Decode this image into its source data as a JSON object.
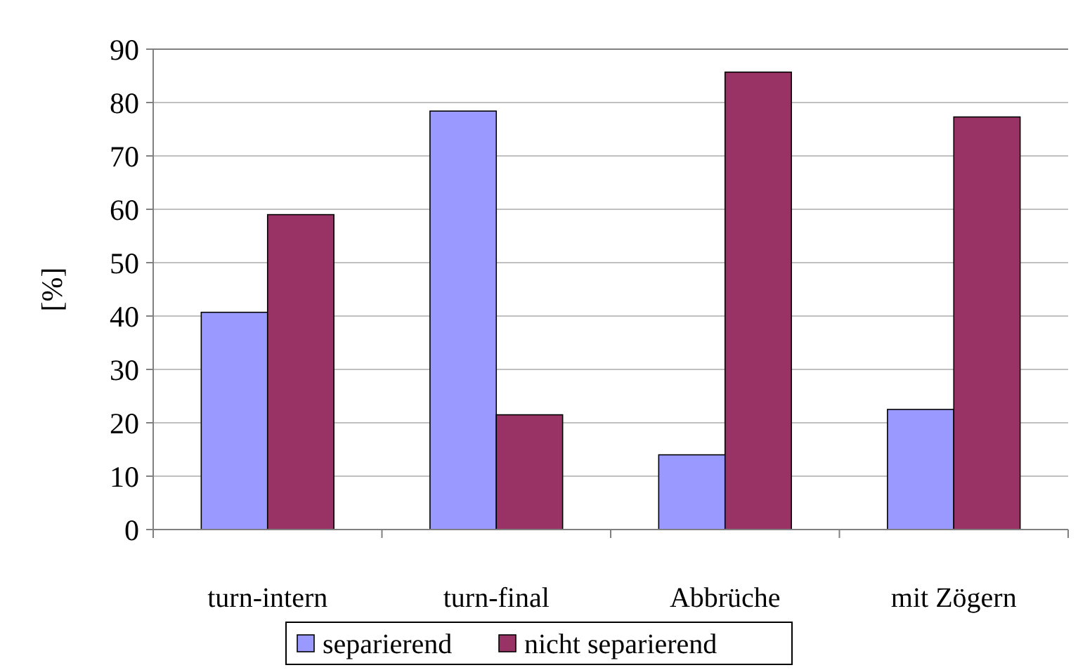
{
  "chart_data": {
    "type": "bar",
    "ylabel": "[%]",
    "categories": [
      "turn-intern",
      "turn-final",
      "Abbrüche",
      "mit Zögern"
    ],
    "series": [
      {
        "name": "separierend",
        "color": "#9999ff",
        "values": [
          40.7,
          78.4,
          14.0,
          22.5
        ]
      },
      {
        "name": "nicht separierend",
        "color": "#993366",
        "values": [
          59.0,
          21.5,
          85.7,
          77.3
        ]
      }
    ],
    "ylim": [
      0,
      90
    ],
    "yticks": [
      0,
      10,
      20,
      30,
      40,
      50,
      60,
      70,
      80,
      90
    ],
    "grid": "y",
    "legend": "bottom"
  }
}
